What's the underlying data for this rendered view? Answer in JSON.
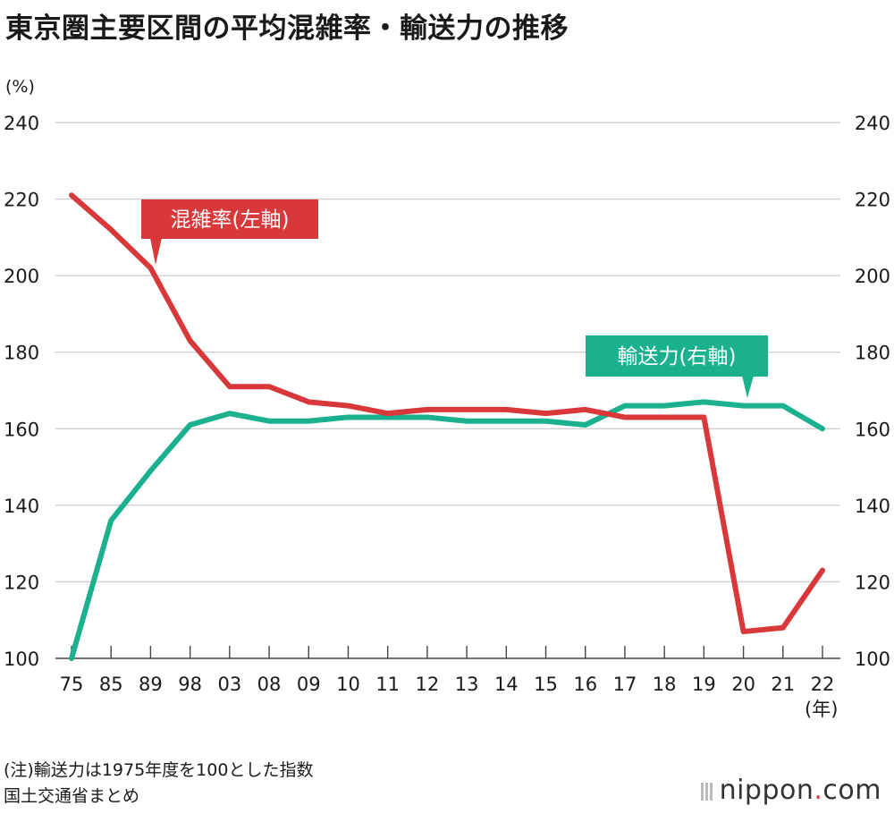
{
  "title": "東京圏主要区間の平均混雑率・輸送力の推移",
  "unit_label": "(%)",
  "x_unit_label": "(年)",
  "note": "(注)輸送力は1975年度を100とした指数",
  "source": "国土交通省まとめ",
  "logo": {
    "name": "nippon",
    "dot": ".",
    "suffix": "com"
  },
  "chart_data": {
    "type": "line",
    "categories": [
      "75",
      "85",
      "89",
      "98",
      "03",
      "08",
      "09",
      "10",
      "11",
      "12",
      "13",
      "14",
      "15",
      "16",
      "17",
      "18",
      "19",
      "20",
      "21",
      "22"
    ],
    "ylim": [
      100,
      240
    ],
    "yticks": [
      100,
      120,
      140,
      160,
      180,
      200,
      220,
      240
    ],
    "grid": true,
    "axes": "dual y-axis (left and right, same scale)",
    "series": [
      {
        "name": "混雑率(左軸)",
        "axis": "left",
        "color": "#d8383a",
        "values": [
          221,
          212,
          202,
          183,
          171,
          171,
          167,
          166,
          164,
          165,
          165,
          165,
          164,
          165,
          163,
          163,
          163,
          107,
          108,
          123
        ]
      },
      {
        "name": "輸送力(右軸)",
        "axis": "right",
        "color": "#1bb08e",
        "values": [
          100,
          136,
          149,
          161,
          164,
          162,
          162,
          163,
          163,
          163,
          162,
          162,
          162,
          161,
          166,
          166,
          167,
          166,
          166,
          160
        ]
      }
    ]
  }
}
